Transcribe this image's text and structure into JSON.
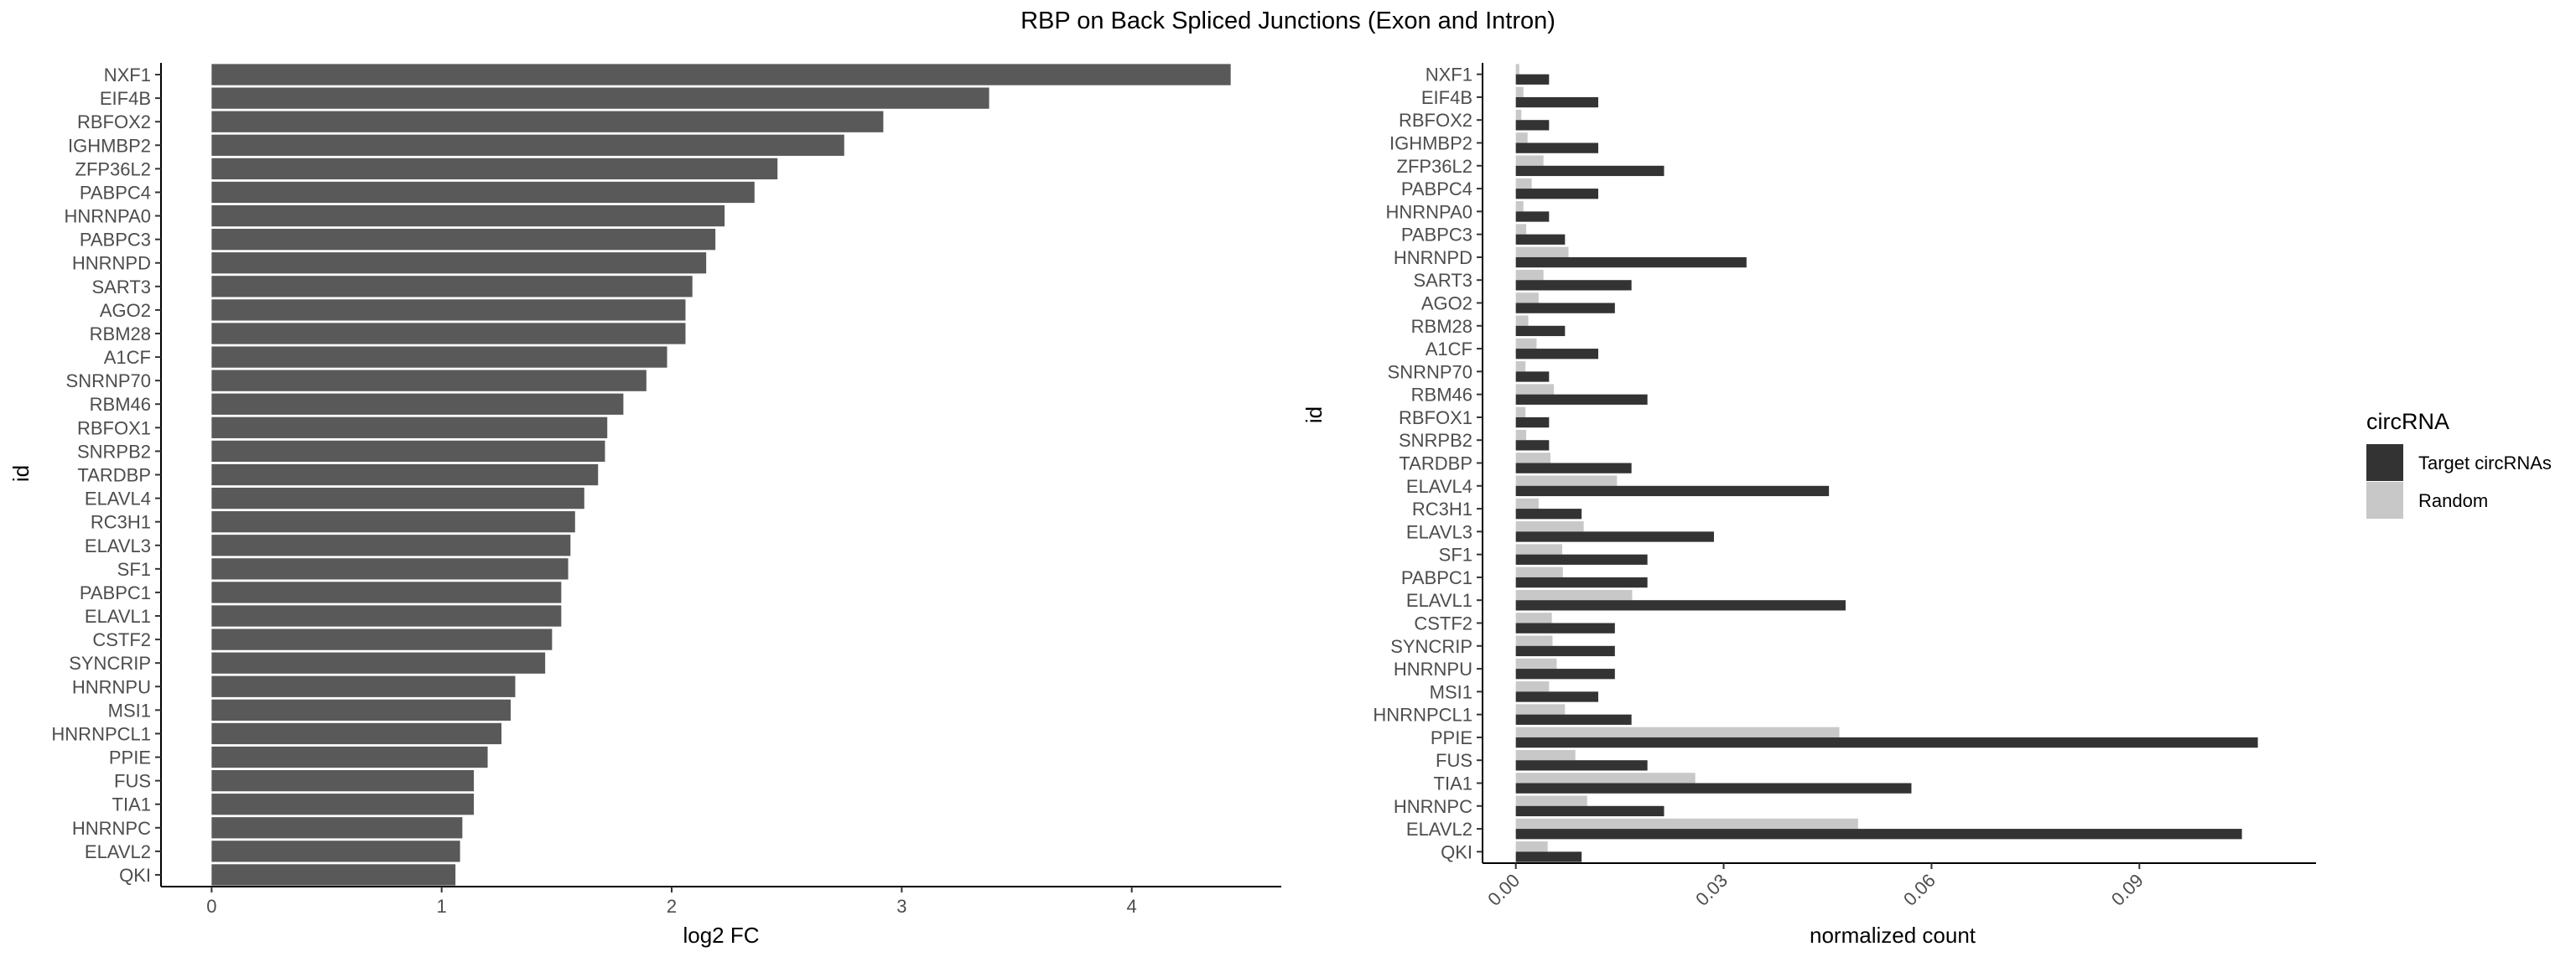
{
  "figure": {
    "title": "RBP on Back Spliced Junctions (Exon and Intron)"
  },
  "legend": {
    "title": "circRNA",
    "position": "right",
    "items": [
      {
        "label": "Target circRNAs",
        "color": "#333333"
      },
      {
        "label": "Random",
        "color": "#c8c8c8"
      }
    ]
  },
  "chart_data": [
    {
      "type": "bar",
      "orientation": "horizontal",
      "xlabel": "log2 FC",
      "ylabel": "id",
      "xlim": [
        -0.22,
        4.65
      ],
      "xticks": [
        0,
        1,
        2,
        3,
        4
      ],
      "xtick_labels": [
        "0",
        "1",
        "2",
        "3",
        "4"
      ],
      "grid": false,
      "bar_color": "#595959",
      "categories": [
        "NXF1",
        "EIF4B",
        "RBFOX2",
        "IGHMBP2",
        "ZFP36L2",
        "PABPC4",
        "HNRNPA0",
        "PABPC3",
        "HNRNPD",
        "SART3",
        "AGO2",
        "RBM28",
        "A1CF",
        "SNRNP70",
        "RBM46",
        "RBFOX1",
        "SNRPB2",
        "TARDBP",
        "ELAVL4",
        "RC3H1",
        "ELAVL3",
        "SF1",
        "PABPC1",
        "ELAVL1",
        "CSTF2",
        "SYNCRIP",
        "HNRNPU",
        "MSI1",
        "HNRNPCL1",
        "PPIE",
        "FUS",
        "TIA1",
        "HNRNPC",
        "ELAVL2",
        "QKI"
      ],
      "values": [
        4.43,
        3.38,
        2.92,
        2.75,
        2.46,
        2.36,
        2.23,
        2.19,
        2.15,
        2.09,
        2.06,
        2.06,
        1.98,
        1.89,
        1.79,
        1.72,
        1.71,
        1.68,
        1.62,
        1.58,
        1.56,
        1.55,
        1.52,
        1.52,
        1.48,
        1.45,
        1.32,
        1.3,
        1.26,
        1.2,
        1.14,
        1.14,
        1.09,
        1.08,
        1.06
      ]
    },
    {
      "type": "bar",
      "orientation": "horizontal",
      "grouped": true,
      "xlabel": "normalized count",
      "ylabel": "id",
      "xlim": [
        -0.0048,
        0.1155
      ],
      "xticks": [
        0,
        0.03,
        0.06,
        0.09
      ],
      "xtick_labels": [
        "0.00",
        "0.03",
        "0.06",
        "0.09"
      ],
      "xtick_rotation": -45,
      "grid": false,
      "categories": [
        "NXF1",
        "EIF4B",
        "RBFOX2",
        "IGHMBP2",
        "ZFP36L2",
        "PABPC4",
        "HNRNPA0",
        "PABPC3",
        "HNRNPD",
        "SART3",
        "AGO2",
        "RBM28",
        "A1CF",
        "SNRNP70",
        "RBM46",
        "RBFOX1",
        "SNRPB2",
        "TARDBP",
        "ELAVL4",
        "RC3H1",
        "ELAVL3",
        "SF1",
        "PABPC1",
        "ELAVL1",
        "CSTF2",
        "SYNCRIP",
        "HNRNPU",
        "MSI1",
        "HNRNPCL1",
        "PPIE",
        "FUS",
        "TIA1",
        "HNRNPC",
        "ELAVL2",
        "QKI"
      ],
      "series": [
        {
          "name": "Target circRNAs",
          "values": [
            0.0048,
            0.0119,
            0.0048,
            0.0119,
            0.0214,
            0.0119,
            0.0048,
            0.0071,
            0.0333,
            0.0167,
            0.0143,
            0.0071,
            0.0119,
            0.0048,
            0.019,
            0.0048,
            0.0048,
            0.0167,
            0.0452,
            0.0095,
            0.0286,
            0.019,
            0.019,
            0.0476,
            0.0143,
            0.0143,
            0.0143,
            0.0119,
            0.0167,
            0.1071,
            0.019,
            0.0571,
            0.0214,
            0.1048,
            0.0095
          ]
        },
        {
          "name": "Random",
          "values": [
            0.0005,
            0.0011,
            0.0008,
            0.0017,
            0.004,
            0.0023,
            0.0011,
            0.0015,
            0.0076,
            0.004,
            0.0033,
            0.0018,
            0.003,
            0.0014,
            0.0055,
            0.0014,
            0.0015,
            0.005,
            0.0146,
            0.0033,
            0.0098,
            0.0067,
            0.0068,
            0.0168,
            0.0052,
            0.0053,
            0.0059,
            0.0048,
            0.0071,
            0.0467,
            0.0086,
            0.0259,
            0.0103,
            0.0494,
            0.0046
          ]
        }
      ]
    }
  ]
}
